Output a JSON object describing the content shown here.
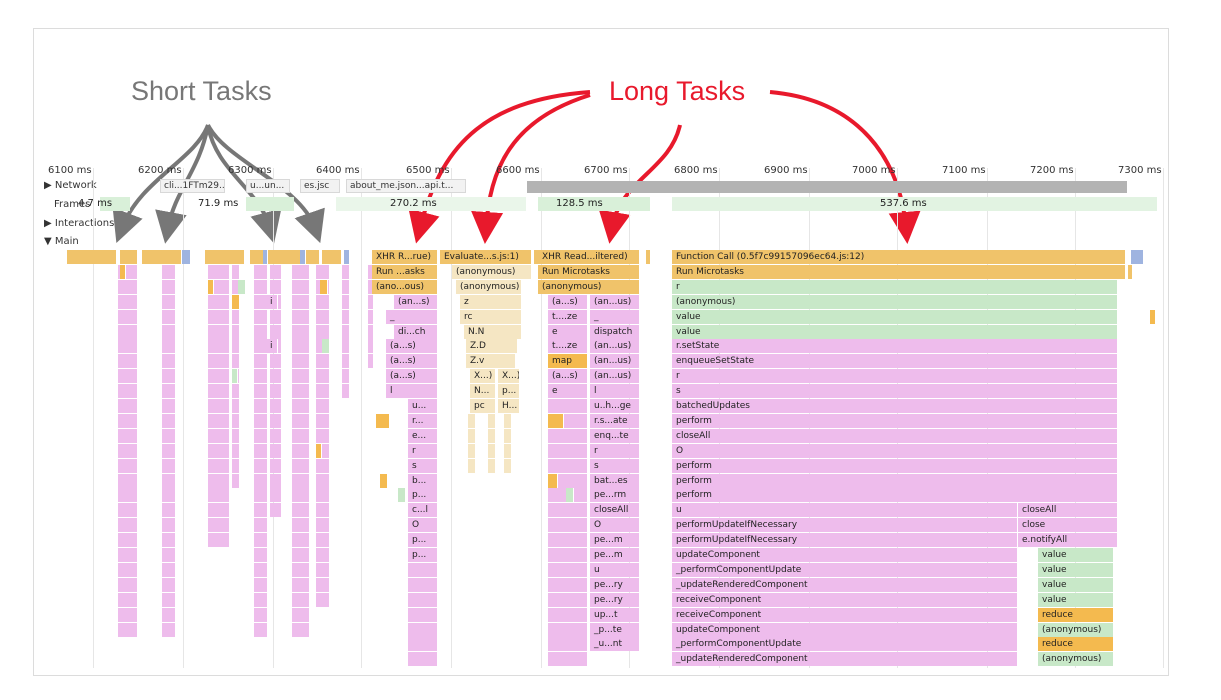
{
  "annotations": {
    "short_tasks": "Short Tasks",
    "long_tasks": "Long Tasks",
    "short_color": "#777777",
    "long_color": "#e8192c"
  },
  "timeline": {
    "ticks": [
      "6100 ms",
      "6200 ms",
      "6300 ms",
      "6400 ms",
      "6500 ms",
      "6600 ms",
      "6700 ms",
      "6800 ms",
      "6900 ms",
      "7000 ms",
      "7100 ms",
      "7200 ms",
      "7300 ms"
    ]
  },
  "tracks": {
    "network": "Network",
    "frames": "Frames",
    "interactions": "Interactions",
    "main": "Main"
  },
  "network_chips": [
    "cli...1FTm29...",
    "u...un...",
    "es.jsc",
    "about_me.json...api.t..."
  ],
  "frames": [
    "4.7 ms",
    "71.9 ms",
    "270.2 ms",
    "128.5 ms",
    "537.6 ms"
  ],
  "flame": {
    "xhr1": [
      "XHR R...rue)",
      "Run ...asks",
      "(ano...ous)",
      "(an...s)",
      "_",
      "di...ch",
      "(a...s)",
      "(a...s)",
      "(a...s)",
      "l",
      "u...",
      "r...",
      "e...",
      "r",
      "s",
      "b...",
      "p...",
      "c...l",
      "O",
      "p...",
      "p..."
    ],
    "evaluate_a": [
      "Evaluate...s.js:1)",
      "(anonymous)",
      "(anonymous)",
      "z",
      "rc",
      "N.N",
      "Z.D",
      "Z.v",
      "X...)",
      "N...",
      "pc"
    ],
    "evaluate_b": [
      "X...)",
      "p...",
      "H..."
    ],
    "xhr2_left": [
      "XHR Read...iltered)",
      "Run Microtasks",
      "(anonymous)",
      "(a...s)",
      "t....ze",
      "e",
      "t....ze",
      "map",
      "(a...s)",
      "e"
    ],
    "xhr2_right": [
      "(an...us)",
      "_",
      "dispatch",
      "(an...us)",
      "(an...us)",
      "(an...us)",
      "l",
      "u..h...ge",
      "r.s...ate",
      "enq...te",
      "r",
      "s",
      "bat...es",
      "pe...rm",
      "closeAll",
      "O",
      "pe...m",
      "pe...m",
      "u",
      "pe...ry",
      "pe...ry",
      "up...t",
      "_p...te",
      "_u...nt"
    ],
    "big": [
      "Function Call (0.5f7c99157096ec64.js:12)",
      "Run Microtasks",
      "r",
      "(anonymous)",
      "value",
      "value",
      "r.setState",
      "enqueueSetState",
      "r",
      "s",
      "batchedUpdates",
      "perform",
      "closeAll",
      "O",
      "perform",
      "perform",
      "perform",
      "u",
      "performUpdateIfNecessary",
      "performUpdateIfNecessary",
      "updateComponent",
      "_performComponentUpdate",
      "_updateRenderedComponent",
      "receiveComponent",
      "receiveComponent",
      "updateComponent",
      "_performComponentUpdate",
      "_updateRenderedComponent"
    ],
    "big_side": [
      "closeAll",
      "close",
      "e.notifyAll",
      "value",
      "value",
      "value",
      "value",
      "reduce",
      "(anonymous)",
      "reduce",
      "(anonymous)"
    ],
    "short_i": [
      "i",
      "i"
    ]
  }
}
